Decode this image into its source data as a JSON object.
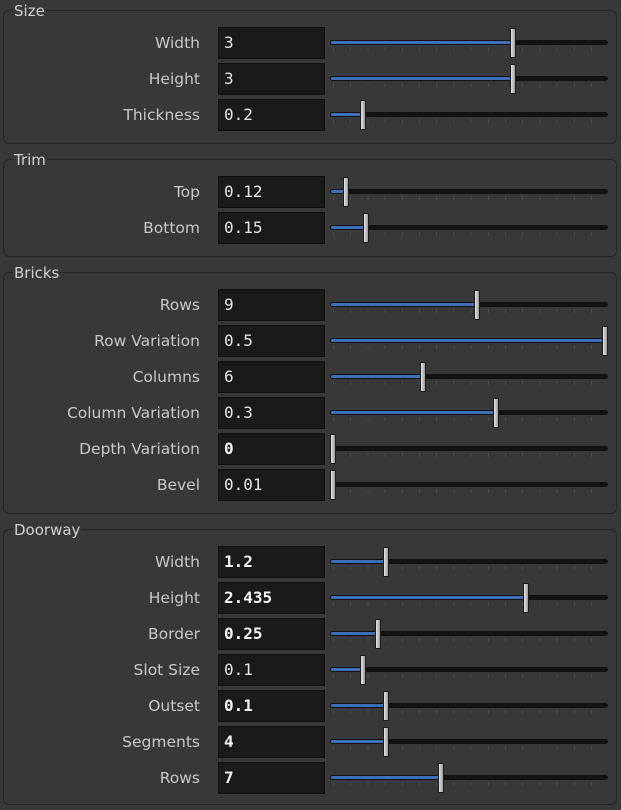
{
  "groups": [
    {
      "title": "Size",
      "rows": [
        {
          "label": "Width",
          "value": "3",
          "fraction": 0.663,
          "bold": false,
          "fill": true
        },
        {
          "label": "Height",
          "value": "3",
          "fraction": 0.663,
          "bold": false,
          "fill": true
        },
        {
          "label": "Thickness",
          "value": "0.2",
          "fraction": 0.117,
          "bold": false,
          "fill": true
        }
      ]
    },
    {
      "title": "Trim",
      "rows": [
        {
          "label": "Top",
          "value": "0.12",
          "fraction": 0.055,
          "bold": false,
          "fill": true
        },
        {
          "label": "Bottom",
          "value": "0.15",
          "fraction": 0.129,
          "bold": false,
          "fill": true
        }
      ]
    },
    {
      "title": "Bricks",
      "rows": [
        {
          "label": "Rows",
          "value": "9",
          "fraction": 0.531,
          "bold": false,
          "fill": true
        },
        {
          "label": "Row Variation",
          "value": "0.5",
          "fraction": 1.0,
          "bold": false,
          "fill": true
        },
        {
          "label": "Columns",
          "value": "6",
          "fraction": 0.336,
          "bold": false,
          "fill": true
        },
        {
          "label": "Column Variation",
          "value": "0.3",
          "fraction": 0.6,
          "bold": false,
          "fill": true
        },
        {
          "label": "Depth Variation",
          "value": "0",
          "fraction": 0.0,
          "bold": true,
          "fill": false
        },
        {
          "label": "Bevel",
          "value": "0.01",
          "fraction": 0.0,
          "bold": false,
          "fill": false
        }
      ]
    },
    {
      "title": "Doorway",
      "rows": [
        {
          "label": "Width",
          "value": "1.2",
          "fraction": 0.2,
          "bold": true,
          "fill": true
        },
        {
          "label": "Height",
          "value": "2.435",
          "fraction": 0.71,
          "bold": true,
          "fill": true
        },
        {
          "label": "Border",
          "value": "0.25",
          "fraction": 0.17,
          "bold": true,
          "fill": true
        },
        {
          "label": "Slot Size",
          "value": "0.1",
          "fraction": 0.115,
          "bold": false,
          "fill": true
        },
        {
          "label": "Outset",
          "value": "0.1",
          "fraction": 0.2,
          "bold": true,
          "fill": true
        },
        {
          "label": "Segments",
          "value": "4",
          "fraction": 0.2,
          "bold": true,
          "fill": true
        },
        {
          "label": "Rows",
          "value": "7",
          "fraction": 0.4,
          "bold": true,
          "fill": true
        }
      ]
    }
  ],
  "colors": {
    "fill": "#3d6eb6",
    "background": "#383838",
    "field": "#1a1a1a"
  }
}
